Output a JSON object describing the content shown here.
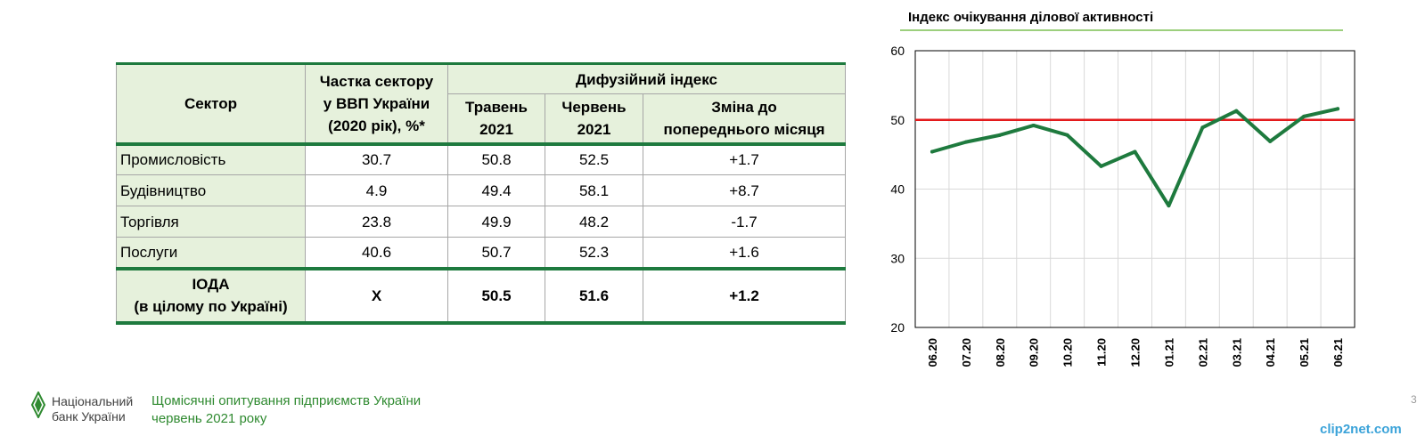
{
  "table": {
    "headers": {
      "sector": "Сектор",
      "share_line1": "Частка сектору",
      "share_line2": "у ВВП України",
      "share_line3": "(2020 рік), %*",
      "diffusion": "Дифузійний індекс",
      "may_line1": "Травень",
      "may_line2": "2021",
      "june_line1": "Червень",
      "june_line2": "2021",
      "change_line1": "Зміна до",
      "change_line2": "попереднього місяця"
    },
    "rows": [
      {
        "sector": "Промисловість",
        "share": "30.7",
        "may": "50.8",
        "june": "52.5",
        "change": "+1.7"
      },
      {
        "sector": "Будівництво",
        "share": "4.9",
        "may": "49.4",
        "june": "58.1",
        "change": "+8.7"
      },
      {
        "sector": "Торгівля",
        "share": "23.8",
        "may": "49.9",
        "june": "48.2",
        "change": "-1.7"
      },
      {
        "sector": "Послуги",
        "share": "40.6",
        "may": "50.7",
        "june": "52.3",
        "change": "+1.6"
      }
    ],
    "total": {
      "sector_line1": "ІОДА",
      "sector_line2": "(в цілому по Україні)",
      "share": "Х",
      "may": "50.5",
      "june": "51.6",
      "change": "+1.2"
    }
  },
  "chart_data": {
    "type": "line",
    "title": "Індекс очікування ділової активності",
    "categories": [
      "06.20",
      "07.20",
      "08.20",
      "09.20",
      "10.20",
      "11.20",
      "12.20",
      "01.21",
      "02.21",
      "03.21",
      "04.21",
      "05.21",
      "06.21"
    ],
    "series": [
      {
        "values": [
          45.4,
          46.8,
          47.8,
          49.2,
          47.8,
          43.3,
          45.4,
          37.6,
          48.9,
          51.3,
          46.9,
          50.5,
          51.6
        ],
        "color": "#1e7a3e"
      }
    ],
    "reference_line": {
      "value": 50,
      "color": "#e31a1c"
    },
    "ylim": [
      20,
      60
    ],
    "yticks": [
      20,
      30,
      40,
      50,
      60
    ],
    "grid": true
  },
  "footer": {
    "bank_line1": "Національний",
    "bank_line2": "банк України",
    "survey_line1": "Щомісячні опитування підприємств України",
    "survey_line2": "червень 2021 року",
    "page_number": "3"
  },
  "watermark": "clip2net.com"
}
